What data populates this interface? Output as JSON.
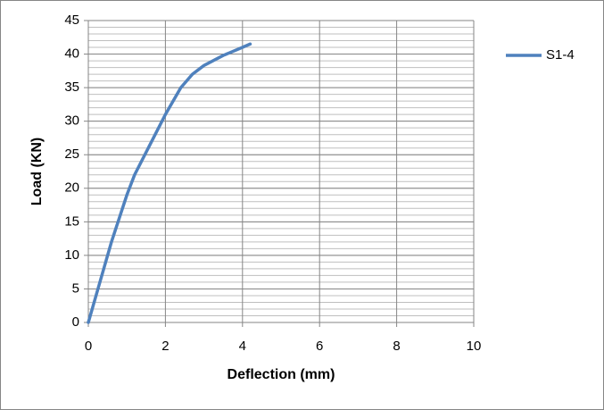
{
  "chart_data": {
    "type": "line",
    "x_label": "Deflection (mm)",
    "y_label": "Load (KN)",
    "series": [
      {
        "name": "S1-4",
        "color": "#4f81bd",
        "x": [
          0,
          0.3,
          0.6,
          1,
          1.2,
          1.6,
          2,
          2.4,
          2.7,
          3,
          3.5,
          4,
          4.2
        ],
        "values": [
          0,
          6,
          12,
          19,
          22,
          26.5,
          31,
          35,
          37,
          38.3,
          39.8,
          41,
          41.5
        ]
      }
    ],
    "xlim": [
      0,
      10
    ],
    "xticks": [
      0,
      2,
      4,
      6,
      8,
      10
    ],
    "ylim": [
      0,
      45
    ],
    "yticks": [
      0,
      5,
      10,
      15,
      20,
      25,
      30,
      35,
      40,
      45
    ],
    "grid": true,
    "y_minor_grid_step": 1,
    "legend": "right"
  }
}
